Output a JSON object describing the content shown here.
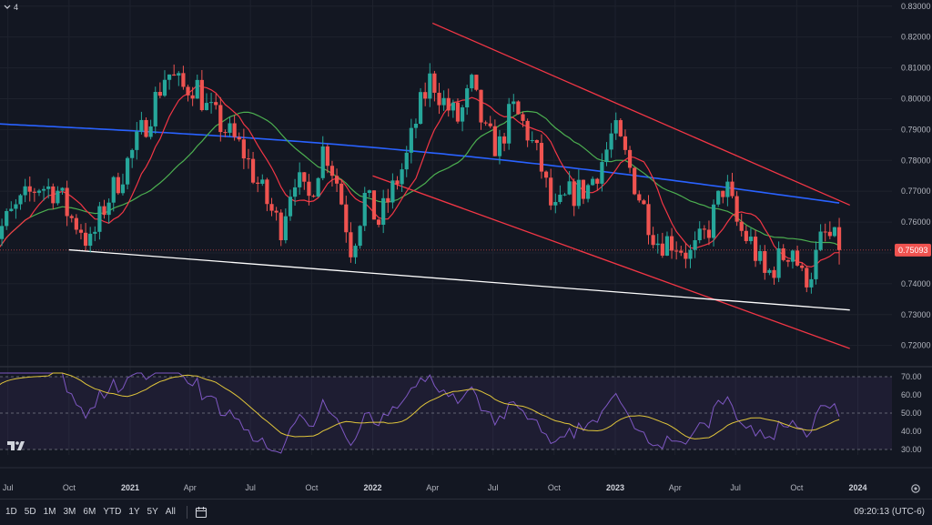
{
  "header": {
    "collapse_label": "4"
  },
  "toolbar": {
    "timeframes": [
      "1D",
      "5D",
      "1M",
      "3M",
      "6M",
      "YTD",
      "1Y",
      "5Y",
      "All"
    ],
    "clock": "09:20:13 (UTC-6)"
  },
  "icons": {
    "calendar": "calendar-range-icon",
    "settings": "settings-icon",
    "logo": "tradingview-logo-icon",
    "collapse": "chevron-down-icon"
  },
  "colors": {
    "background": "#131722",
    "up": "#26a69a",
    "down": "#ef5350",
    "ma_red": "#f23645",
    "ma_green": "#4caf50",
    "ma_blue": "#2962ff",
    "rsi": "#7e57c2",
    "rsi_ma": "#e0c53b",
    "channel": "#f23645",
    "support": "#ffffff"
  },
  "chart_data": [
    {
      "type": "candlestick",
      "timeframe": "weekly",
      "x_labels": [
        "Jul",
        "Oct",
        "2021",
        "Apr",
        "Jul",
        "Oct",
        "2022",
        "Apr",
        "Jul",
        "Oct",
        "2023",
        "Apr",
        "Jul",
        "Oct",
        "2024"
      ],
      "x_label_dates": [
        "2020-07",
        "2020-10",
        "2021-01",
        "2021-04",
        "2021-07",
        "2021-10",
        "2022-01",
        "2022-04",
        "2022-07",
        "2022-10",
        "2023-01",
        "2023-04",
        "2023-07",
        "2023-10",
        "2024-01"
      ],
      "y_ticks": [
        "0.83000",
        "0.82000",
        "0.81000",
        "0.80000",
        "0.79000",
        "0.78000",
        "0.77000",
        "0.76000",
        "0.75000",
        "0.74000",
        "0.73000",
        "0.72000"
      ],
      "ylim": [
        0.714,
        0.832
      ],
      "last_price": "0.75093",
      "close_anchors": [
        [
          "2020-06-01",
          0.752
        ],
        [
          "2020-07-01",
          0.761
        ],
        [
          "2020-08-15",
          0.772
        ],
        [
          "2020-09-15",
          0.77
        ],
        [
          "2020-10-01",
          0.762
        ],
        [
          "2020-10-20",
          0.758
        ],
        [
          "2020-11-01",
          0.752
        ],
        [
          "2020-11-25",
          0.766
        ],
        [
          "2020-12-20",
          0.776
        ],
        [
          "2021-01-10",
          0.785
        ],
        [
          "2021-02-01",
          0.796
        ],
        [
          "2021-02-25",
          0.809
        ],
        [
          "2021-03-20",
          0.803
        ],
        [
          "2021-04-10",
          0.805
        ],
        [
          "2021-04-25",
          0.797
        ],
        [
          "2021-05-20",
          0.791
        ],
        [
          "2021-06-20",
          0.783
        ],
        [
          "2021-07-15",
          0.771
        ],
        [
          "2021-08-15",
          0.758
        ],
        [
          "2021-09-05",
          0.776
        ],
        [
          "2021-09-25",
          0.766
        ],
        [
          "2021-10-20",
          0.785
        ],
        [
          "2021-11-10",
          0.772
        ],
        [
          "2021-11-30",
          0.751
        ],
        [
          "2021-12-20",
          0.768
        ],
        [
          "2022-01-10",
          0.76
        ],
        [
          "2022-01-30",
          0.77
        ],
        [
          "2022-02-20",
          0.78
        ],
        [
          "2022-03-10",
          0.795
        ],
        [
          "2022-03-30",
          0.807
        ],
        [
          "2022-04-20",
          0.798
        ],
        [
          "2022-05-10",
          0.793
        ],
        [
          "2022-05-30",
          0.804
        ],
        [
          "2022-06-20",
          0.788
        ],
        [
          "2022-07-10",
          0.784
        ],
        [
          "2022-07-30",
          0.797
        ],
        [
          "2022-08-20",
          0.79
        ],
        [
          "2022-09-10",
          0.779
        ],
        [
          "2022-09-30",
          0.762
        ],
        [
          "2022-10-25",
          0.769
        ],
        [
          "2022-11-20",
          0.771
        ],
        [
          "2022-12-15",
          0.781
        ],
        [
          "2022-12-30",
          0.79
        ],
        [
          "2023-01-20",
          0.779
        ],
        [
          "2023-02-10",
          0.766
        ],
        [
          "2023-03-05",
          0.754
        ],
        [
          "2023-03-30",
          0.754
        ],
        [
          "2023-04-25",
          0.749
        ],
        [
          "2023-05-20",
          0.757
        ],
        [
          "2023-06-15",
          0.773
        ],
        [
          "2023-07-05",
          0.758
        ],
        [
          "2023-07-25",
          0.753
        ],
        [
          "2023-08-15",
          0.742
        ],
        [
          "2023-09-05",
          0.748
        ],
        [
          "2023-09-25",
          0.752
        ],
        [
          "2023-10-10",
          0.741
        ],
        [
          "2023-10-25",
          0.745
        ],
        [
          "2023-11-10",
          0.756
        ],
        [
          "2023-11-25",
          0.754
        ],
        [
          "2023-12-05",
          0.751
        ]
      ],
      "overlays": [
        {
          "kind": "moving_average",
          "color": "#f23645"
        },
        {
          "kind": "moving_average",
          "color": "#4caf50"
        },
        {
          "kind": "moving_average",
          "color": "#2962ff"
        },
        {
          "kind": "trendline",
          "color": "#f23645",
          "from": [
            "2022-04-01",
            0.8245
          ],
          "to": [
            "2023-12-20",
            0.7655
          ]
        },
        {
          "kind": "trendline",
          "color": "#f23645",
          "from": [
            "2022-01-01",
            0.775
          ],
          "to": [
            "2023-12-20",
            0.719
          ]
        },
        {
          "kind": "trendline",
          "color": "#ffffff",
          "from": [
            "2020-10-01",
            0.751
          ],
          "to": [
            "2023-12-20",
            0.7315
          ]
        }
      ]
    },
    {
      "type": "line",
      "indicator": "RSI",
      "y_ticks": [
        "70.00",
        "60.00",
        "50.00",
        "40.00",
        "30.00"
      ],
      "ylim": [
        27,
        73
      ],
      "band": [
        30,
        70
      ],
      "midline": 50,
      "series": [
        {
          "kind": "rsi",
          "color": "#7e57c2"
        },
        {
          "kind": "rsi_ma",
          "color": "#e0c53b"
        }
      ]
    }
  ]
}
